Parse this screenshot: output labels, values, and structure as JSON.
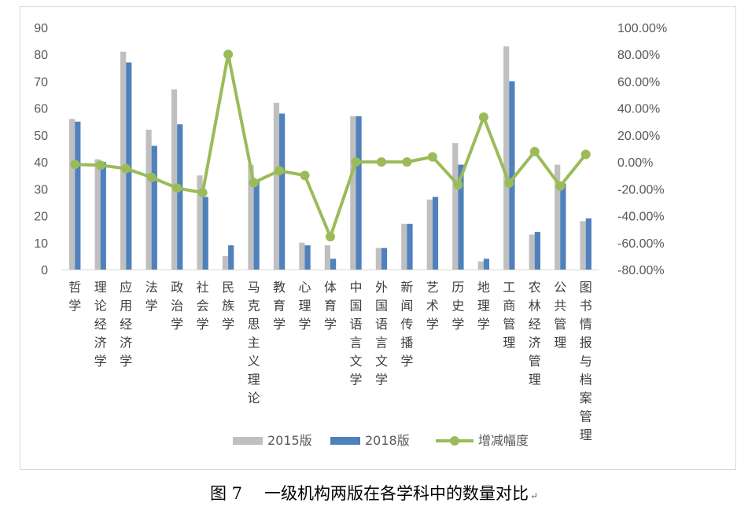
{
  "chart_data": {
    "type": "bar",
    "categories": [
      "哲学",
      "理论经济学",
      "应用经济学",
      "法学",
      "政治学",
      "社会学",
      "民族学",
      "马克思主义理论",
      "教育学",
      "心理学",
      "体育学",
      "中国语言文学",
      "外国语言文学",
      "新闻传播学",
      "艺术学",
      "历史学",
      "地理学",
      "工商管理",
      "农林经济管理",
      "公共管理",
      "图书情报与档案管理"
    ],
    "series": [
      {
        "name": "2015版",
        "type": "bar",
        "axis": "left",
        "color": "#bfbfbf",
        "values": [
          56,
          41,
          81,
          52,
          67,
          35,
          5,
          39,
          62,
          10,
          9,
          57,
          8,
          17,
          26,
          47,
          3,
          83,
          13,
          39,
          18
        ]
      },
      {
        "name": "2018版",
        "type": "bar",
        "axis": "left",
        "color": "#4f81bd",
        "values": [
          55,
          40,
          77,
          46,
          54,
          27,
          9,
          33,
          58,
          9,
          4,
          57,
          8,
          17,
          27,
          39,
          4,
          70,
          14,
          32,
          19
        ]
      },
      {
        "name": "增减幅度",
        "type": "line",
        "axis": "right",
        "color": "#9bbb59",
        "values": [
          -1.8,
          -2.4,
          -4.9,
          -11.5,
          -19.4,
          -22.9,
          80.0,
          -15.4,
          -6.5,
          -10.0,
          -55.6,
          0.0,
          0.0,
          0.0,
          3.8,
          -17.0,
          33.3,
          -15.7,
          7.7,
          -17.9,
          5.6
        ]
      }
    ],
    "y_left": {
      "min": 0,
      "max": 90,
      "step": 10,
      "ticks": [
        "0",
        "10",
        "20",
        "30",
        "40",
        "50",
        "60",
        "70",
        "80",
        "90"
      ]
    },
    "y_right": {
      "min": -80,
      "max": 100,
      "step": 20,
      "ticks": [
        "-80.00%",
        "-60.00%",
        "-40.00%",
        "-20.00%",
        "0.00%",
        "20.00%",
        "40.00%",
        "60.00%",
        "80.00%",
        "100.00%"
      ]
    },
    "legend_position": "bottom",
    "grid": false
  },
  "caption": {
    "figure_no": "图 7",
    "title": "一级机构两版在各学科中的数量对比",
    "mark": "↵"
  }
}
